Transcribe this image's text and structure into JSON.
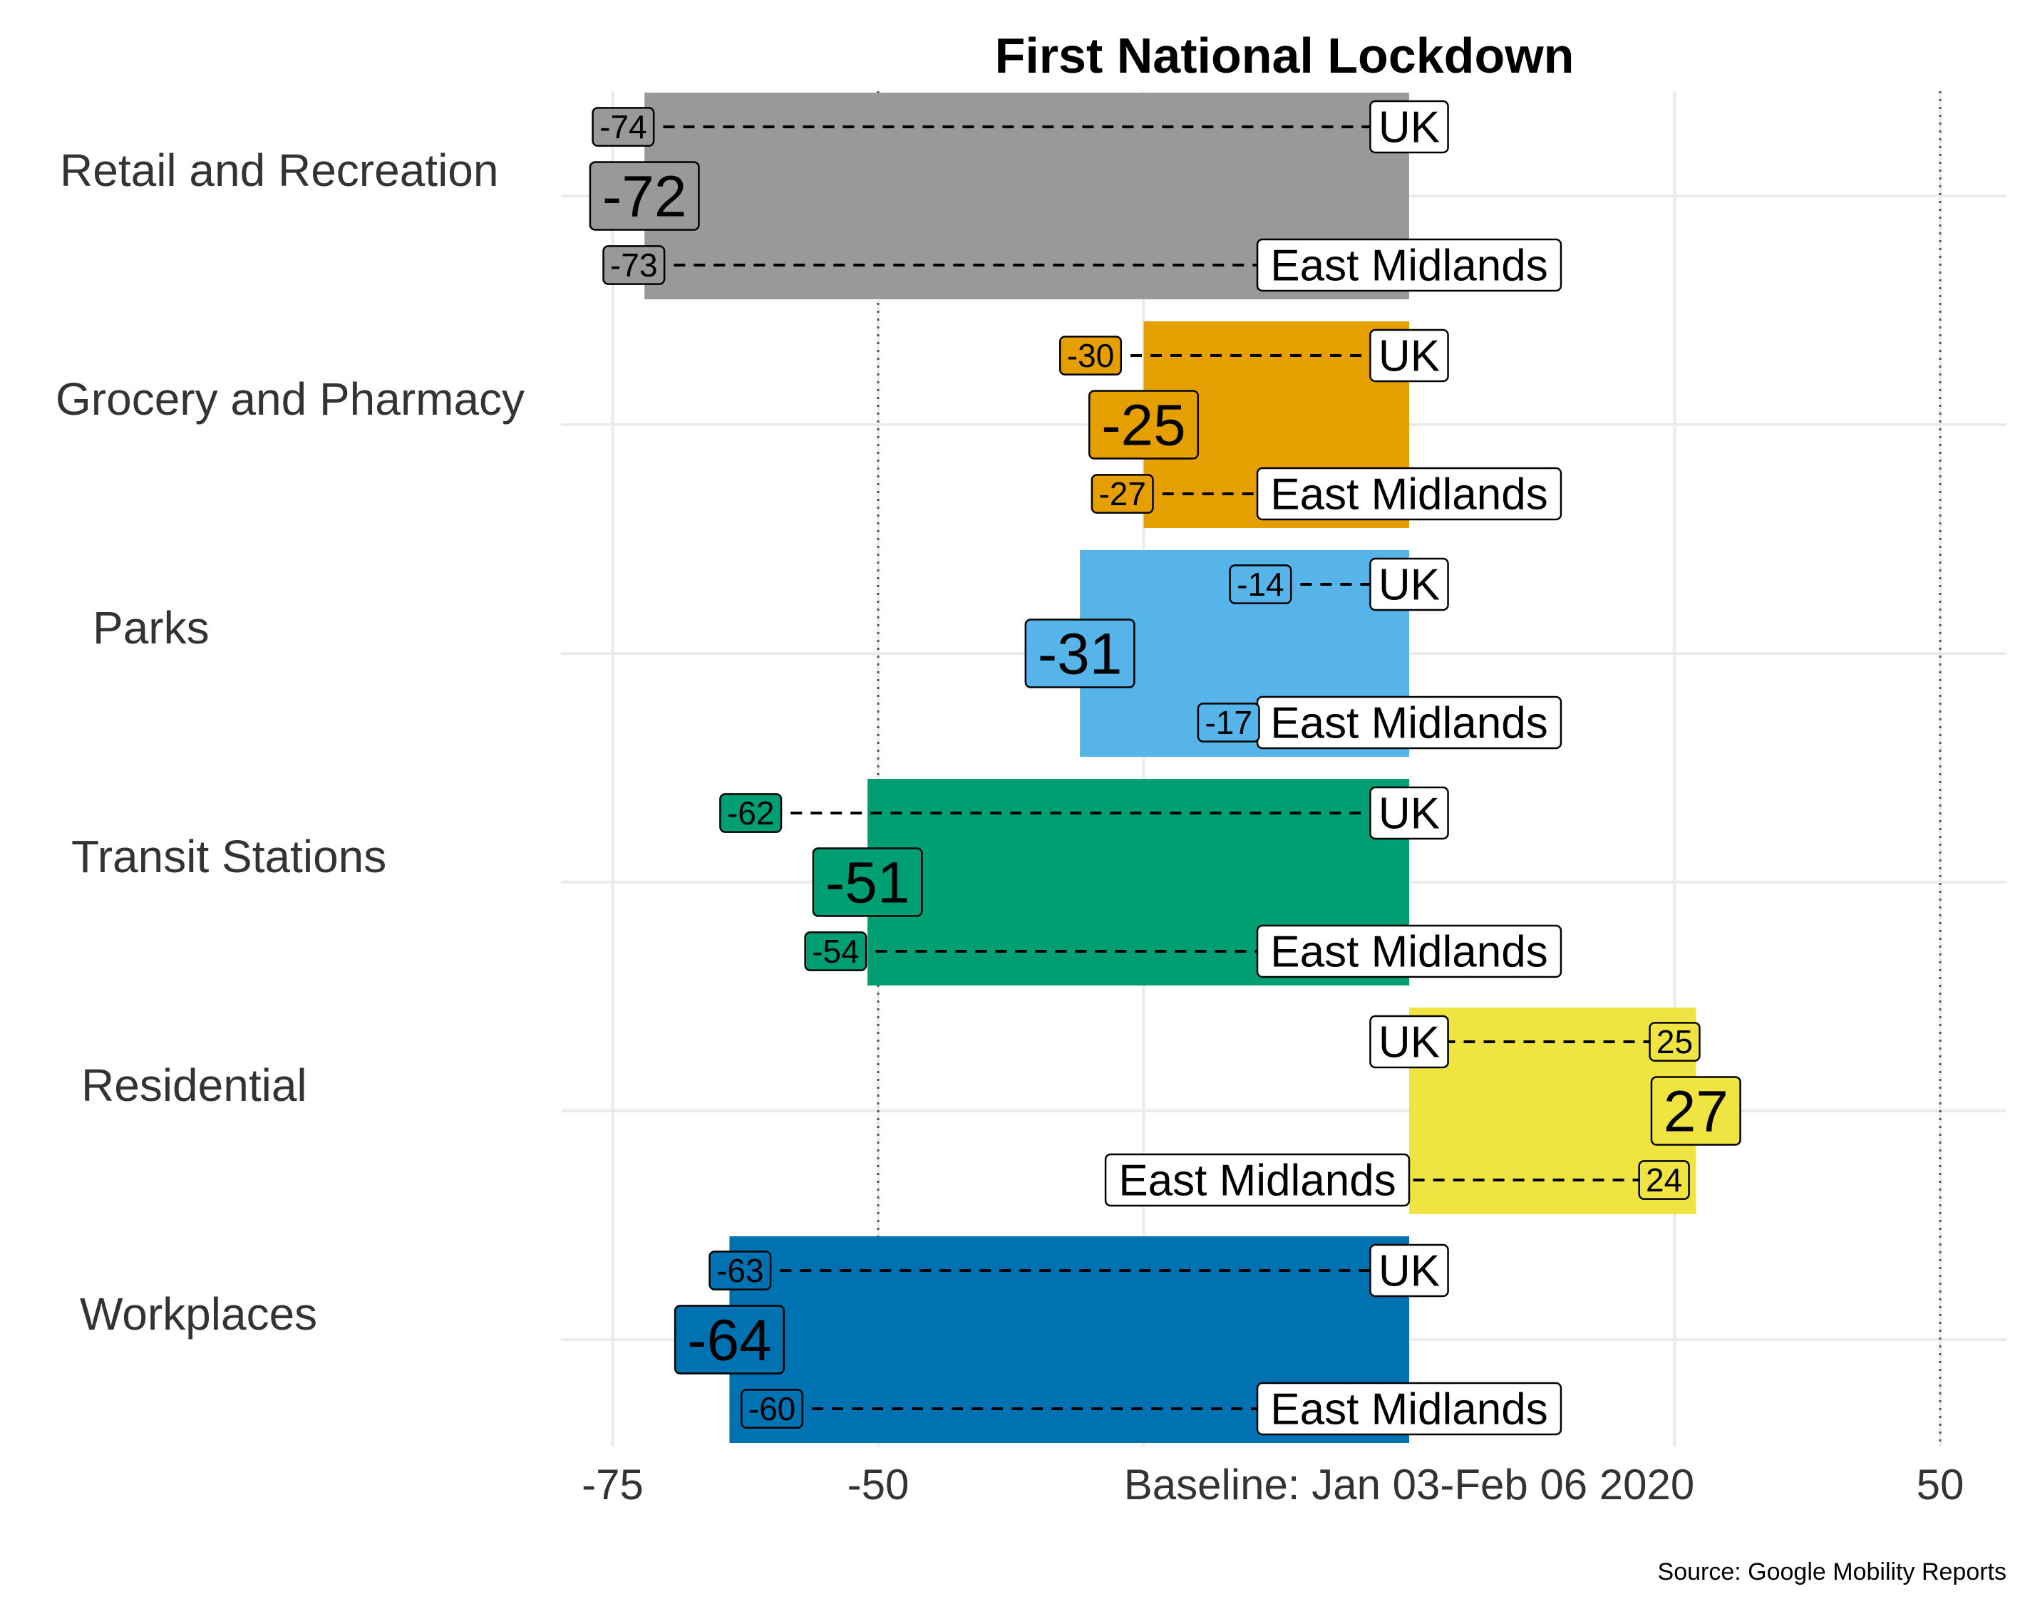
{
  "chart_data": {
    "type": "bar",
    "orientation": "horizontal",
    "title": "First National Lockdown",
    "baseline_label": "Baseline: Jan 03-Feb 06 2020",
    "caption": "Source: Google Mobility Reports",
    "xlim": [
      -78,
      50
    ],
    "x_ticks": [
      {
        "value": -75,
        "label": "-75"
      },
      {
        "value": -50,
        "label": "-50"
      },
      {
        "value": 50,
        "label": "50"
      }
    ],
    "reference_lines": [
      -50,
      50
    ],
    "series_names": {
      "uk": "UK",
      "region": "East Midlands"
    },
    "categories": [
      {
        "name": "Retail and Recreation",
        "value": -72,
        "uk": -74,
        "region": -73,
        "color": "#999999"
      },
      {
        "name": "Grocery and Pharmacy",
        "value": -25,
        "uk": -30,
        "region": -27,
        "color": "#E69F00"
      },
      {
        "name": "Parks",
        "value": -31,
        "uk": -14,
        "region": -17,
        "color": "#56B4E9"
      },
      {
        "name": "Transit Stations",
        "value": -51,
        "uk": -62,
        "region": -54,
        "color": "#009E73"
      },
      {
        "name": "Residential",
        "value": 27,
        "uk": 25,
        "region": 24,
        "color": "#F0E442"
      },
      {
        "name": "Workplaces",
        "value": -64,
        "uk": -63,
        "region": -60,
        "color": "#0072B2"
      }
    ]
  }
}
